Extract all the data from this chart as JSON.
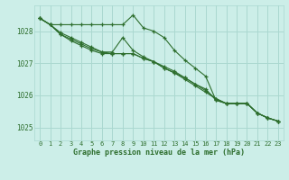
{
  "title": "Graphe pression niveau de la mer (hPa)",
  "background_color": "#cceee8",
  "grid_color": "#aad8d0",
  "line_color": "#2d6e2d",
  "marker_color": "#2d6e2d",
  "xlim": [
    -0.5,
    23.5
  ],
  "ylim": [
    1024.6,
    1028.8
  ],
  "yticks": [
    1025,
    1026,
    1027,
    1028
  ],
  "xticks": [
    0,
    1,
    2,
    3,
    4,
    5,
    6,
    7,
    8,
    9,
    10,
    11,
    12,
    13,
    14,
    15,
    16,
    17,
    18,
    19,
    20,
    21,
    22,
    23
  ],
  "series": [
    [
      1028.4,
      1028.2,
      1028.2,
      1028.2,
      1028.2,
      1028.2,
      1028.2,
      1028.2,
      1028.2,
      1028.5,
      1028.1,
      1028.0,
      1027.8,
      1027.4,
      1027.1,
      1026.85,
      1026.6,
      1025.85,
      1025.75,
      1025.75,
      1025.75,
      1025.45,
      1025.3,
      1025.2
    ],
    [
      1028.4,
      1028.2,
      1027.95,
      1027.8,
      1027.65,
      1027.5,
      1027.35,
      1027.35,
      1027.8,
      1027.4,
      1027.2,
      1027.05,
      1026.85,
      1026.7,
      1026.55,
      1026.35,
      1026.2,
      1025.85,
      1025.75,
      1025.75,
      1025.75,
      1025.45,
      1025.3,
      1025.2
    ],
    [
      1028.4,
      1028.2,
      1027.9,
      1027.7,
      1027.55,
      1027.4,
      1027.3,
      1027.3,
      1027.3,
      1027.3,
      1027.15,
      1027.05,
      1026.85,
      1026.7,
      1026.5,
      1026.3,
      1026.1,
      1025.9,
      1025.75,
      1025.75,
      1025.75,
      1025.45,
      1025.3,
      1025.2
    ],
    [
      1028.4,
      1028.2,
      1027.9,
      1027.75,
      1027.6,
      1027.45,
      1027.35,
      1027.3,
      1027.3,
      1027.3,
      1027.15,
      1027.05,
      1026.9,
      1026.75,
      1026.55,
      1026.35,
      1026.15,
      1025.9,
      1025.75,
      1025.75,
      1025.75,
      1025.45,
      1025.3,
      1025.2
    ]
  ]
}
